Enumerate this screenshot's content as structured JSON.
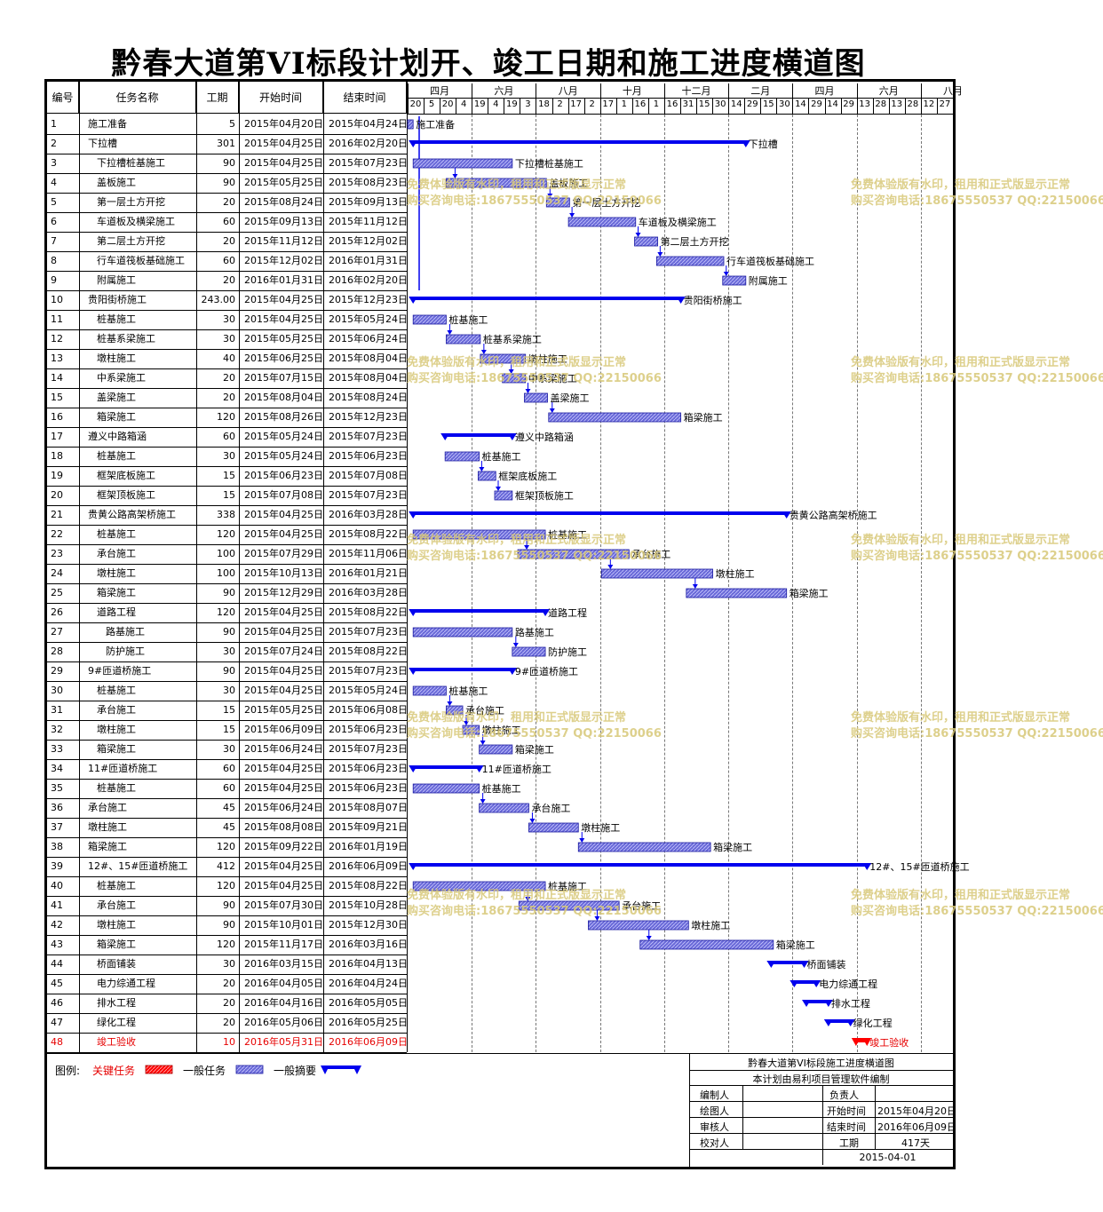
{
  "title": "黔春大道第VI标段计划开、竣工日期和施工进度横道图",
  "headers": {
    "id": "编号",
    "name": "任务名称",
    "duration": "工期",
    "start": "开始时间",
    "end": "结束时间"
  },
  "timeline": {
    "months": [
      "四月",
      "六月",
      "八月",
      "十月",
      "十二月",
      "二月",
      "四月",
      "六月",
      "八月"
    ],
    "days": [
      "20",
      "5",
      "20",
      "4",
      "19",
      "4",
      "19",
      "3",
      "18",
      "2",
      "17",
      "2",
      "17",
      "1",
      "16",
      "1",
      "16",
      "31",
      "15",
      "30",
      "14",
      "29",
      "15",
      "30",
      "14",
      "29",
      "14",
      "29",
      "13",
      "28",
      "13",
      "28",
      "12",
      "27"
    ]
  },
  "chart_data": {
    "type": "gantt",
    "title": "黔春大道第VI标段计划开、竣工日期和施工进度横道图",
    "axis_start": "2015-04-20",
    "axis_end": "2016-08-27",
    "tasks": [
      {
        "id": "1",
        "name": "施工准备",
        "dur": "5",
        "start": "2015年04月20日",
        "end": "2015年04月24日",
        "s": "2015-04-20",
        "e": "2015-04-24",
        "kind": "task",
        "indent": 0,
        "label": "施工准备"
      },
      {
        "id": "2",
        "name": "下拉槽",
        "dur": "301",
        "start": "2015年04月25日",
        "end": "2016年02月20日",
        "s": "2015-04-25",
        "e": "2016-02-20",
        "kind": "summary",
        "indent": 0,
        "label": "下拉槽"
      },
      {
        "id": "3",
        "name": "下拉槽桩基施工",
        "dur": "90",
        "start": "2015年04月25日",
        "end": "2015年07月23日",
        "s": "2015-04-25",
        "e": "2015-07-23",
        "kind": "task",
        "indent": 1,
        "label": "下拉槽桩基施工"
      },
      {
        "id": "4",
        "name": "盖板施工",
        "dur": "90",
        "start": "2015年05月25日",
        "end": "2015年08月23日",
        "s": "2015-05-25",
        "e": "2015-08-23",
        "kind": "task",
        "indent": 1,
        "label": "盖板施工"
      },
      {
        "id": "5",
        "name": "第一层土方开挖",
        "dur": "20",
        "start": "2015年08月24日",
        "end": "2015年09月13日",
        "s": "2015-08-24",
        "e": "2015-09-13",
        "kind": "task",
        "indent": 1,
        "label": "第一层土方开挖"
      },
      {
        "id": "6",
        "name": "车道板及横梁施工",
        "dur": "60",
        "start": "2015年09月13日",
        "end": "2015年11月12日",
        "s": "2015-09-13",
        "e": "2015-11-12",
        "kind": "task",
        "indent": 1,
        "label": "车道板及横梁施工"
      },
      {
        "id": "7",
        "name": "第二层土方开挖",
        "dur": "20",
        "start": "2015年11月12日",
        "end": "2015年12月02日",
        "s": "2015-11-12",
        "e": "2015-12-02",
        "kind": "task",
        "indent": 1,
        "label": "第二层土方开挖"
      },
      {
        "id": "8",
        "name": "行车道筏板基础施工",
        "dur": "60",
        "start": "2015年12月02日",
        "end": "2016年01月31日",
        "s": "2015-12-02",
        "e": "2016-01-31",
        "kind": "task",
        "indent": 1,
        "label": "行车道筏板基础施工"
      },
      {
        "id": "9",
        "name": "附属施工",
        "dur": "20",
        "start": "2016年01月31日",
        "end": "2016年02月20日",
        "s": "2016-01-31",
        "e": "2016-02-20",
        "kind": "task",
        "indent": 1,
        "label": "附属施工"
      },
      {
        "id": "10",
        "name": "贵阳街桥施工",
        "dur": "243.00",
        "start": "2015年04月25日",
        "end": "2015年12月23日",
        "s": "2015-04-25",
        "e": "2015-12-23",
        "kind": "summary",
        "indent": 0,
        "label": "贵阳街桥施工"
      },
      {
        "id": "11",
        "name": "桩基施工",
        "dur": "30",
        "start": "2015年04月25日",
        "end": "2015年05月24日",
        "s": "2015-04-25",
        "e": "2015-05-24",
        "kind": "task",
        "indent": 1,
        "label": "桩基施工"
      },
      {
        "id": "12",
        "name": "桩基系梁施工",
        "dur": "30",
        "start": "2015年05月25日",
        "end": "2015年06月24日",
        "s": "2015-05-25",
        "e": "2015-06-24",
        "kind": "task",
        "indent": 1,
        "label": "桩基系梁施工"
      },
      {
        "id": "13",
        "name": "墩柱施工",
        "dur": "40",
        "start": "2015年06月25日",
        "end": "2015年08月04日",
        "s": "2015-06-25",
        "e": "2015-08-04",
        "kind": "task",
        "indent": 1,
        "label": "墩柱施工"
      },
      {
        "id": "14",
        "name": "中系梁施工",
        "dur": "20",
        "start": "2015年07月15日",
        "end": "2015年08月04日",
        "s": "2015-07-15",
        "e": "2015-08-04",
        "kind": "task",
        "indent": 1,
        "label": "中系梁施工"
      },
      {
        "id": "15",
        "name": "盖梁施工",
        "dur": "20",
        "start": "2015年08月04日",
        "end": "2015年08月24日",
        "s": "2015-08-04",
        "e": "2015-08-24",
        "kind": "task",
        "indent": 1,
        "label": "盖梁施工"
      },
      {
        "id": "16",
        "name": "箱梁施工",
        "dur": "120",
        "start": "2015年08月26日",
        "end": "2015年12月23日",
        "s": "2015-08-26",
        "e": "2015-12-23",
        "kind": "task",
        "indent": 1,
        "label": "箱梁施工"
      },
      {
        "id": "17",
        "name": "遵义中路箱涵",
        "dur": "60",
        "start": "2015年05月24日",
        "end": "2015年07月23日",
        "s": "2015-05-24",
        "e": "2015-07-23",
        "kind": "summary",
        "indent": 0,
        "label": "遵义中路箱涵"
      },
      {
        "id": "18",
        "name": "桩基施工",
        "dur": "30",
        "start": "2015年05月24日",
        "end": "2015年06月23日",
        "s": "2015-05-24",
        "e": "2015-06-23",
        "kind": "task",
        "indent": 1,
        "label": "桩基施工"
      },
      {
        "id": "19",
        "name": "框架底板施工",
        "dur": "15",
        "start": "2015年06月23日",
        "end": "2015年07月08日",
        "s": "2015-06-23",
        "e": "2015-07-08",
        "kind": "task",
        "indent": 1,
        "label": "框架底板施工"
      },
      {
        "id": "20",
        "name": "框架顶板施工",
        "dur": "15",
        "start": "2015年07月08日",
        "end": "2015年07月23日",
        "s": "2015-07-08",
        "e": "2015-07-23",
        "kind": "task",
        "indent": 1,
        "label": "框架顶板施工"
      },
      {
        "id": "21",
        "name": "贵黄公路高架桥施工",
        "dur": "338",
        "start": "2015年04月25日",
        "end": "2016年03月28日",
        "s": "2015-04-25",
        "e": "2016-03-28",
        "kind": "summary",
        "indent": 0,
        "label": "贵黄公路高架桥施工"
      },
      {
        "id": "22",
        "name": "桩基施工",
        "dur": "120",
        "start": "2015年04月25日",
        "end": "2015年08月22日",
        "s": "2015-04-25",
        "e": "2015-08-22",
        "kind": "task",
        "indent": 1,
        "label": "桩基施工"
      },
      {
        "id": "23",
        "name": "承台施工",
        "dur": "100",
        "start": "2015年07月29日",
        "end": "2015年11月06日",
        "s": "2015-07-29",
        "e": "2015-11-06",
        "kind": "task",
        "indent": 1,
        "label": "承台施工"
      },
      {
        "id": "24",
        "name": "墩柱施工",
        "dur": "100",
        "start": "2015年10月13日",
        "end": "2016年01月21日",
        "s": "2015-10-13",
        "e": "2016-01-21",
        "kind": "task",
        "indent": 1,
        "label": "墩柱施工"
      },
      {
        "id": "25",
        "name": "箱梁施工",
        "dur": "90",
        "start": "2015年12月29日",
        "end": "2016年03月28日",
        "s": "2015-12-29",
        "e": "2016-03-28",
        "kind": "task",
        "indent": 1,
        "label": "箱梁施工"
      },
      {
        "id": "26",
        "name": "道路工程",
        "dur": "120",
        "start": "2015年04月25日",
        "end": "2015年08月22日",
        "s": "2015-04-25",
        "e": "2015-08-22",
        "kind": "summary",
        "indent": 1,
        "label": "道路工程"
      },
      {
        "id": "27",
        "name": "路基施工",
        "dur": "90",
        "start": "2015年04月25日",
        "end": "2015年07月23日",
        "s": "2015-04-25",
        "e": "2015-07-23",
        "kind": "task",
        "indent": 2,
        "label": "路基施工"
      },
      {
        "id": "28",
        "name": "防护施工",
        "dur": "30",
        "start": "2015年07月24日",
        "end": "2015年08月22日",
        "s": "2015-07-24",
        "e": "2015-08-22",
        "kind": "task",
        "indent": 2,
        "label": "防护施工"
      },
      {
        "id": "29",
        "name": "9#匝道桥施工",
        "dur": "90",
        "start": "2015年04月25日",
        "end": "2015年07月23日",
        "s": "2015-04-25",
        "e": "2015-07-23",
        "kind": "summary",
        "indent": 0,
        "label": "9#匝道桥施工"
      },
      {
        "id": "30",
        "name": "桩基施工",
        "dur": "30",
        "start": "2015年04月25日",
        "end": "2015年05月24日",
        "s": "2015-04-25",
        "e": "2015-05-24",
        "kind": "task",
        "indent": 1,
        "label": "桩基施工"
      },
      {
        "id": "31",
        "name": "承台施工",
        "dur": "15",
        "start": "2015年05月25日",
        "end": "2015年06月08日",
        "s": "2015-05-25",
        "e": "2015-06-08",
        "kind": "task",
        "indent": 1,
        "label": "承台施工"
      },
      {
        "id": "32",
        "name": "墩柱施工",
        "dur": "15",
        "start": "2015年06月09日",
        "end": "2015年06月23日",
        "s": "2015-06-09",
        "e": "2015-06-23",
        "kind": "task",
        "indent": 1,
        "label": "墩柱施工"
      },
      {
        "id": "33",
        "name": "箱梁施工",
        "dur": "30",
        "start": "2015年06月24日",
        "end": "2015年07月23日",
        "s": "2015-06-24",
        "e": "2015-07-23",
        "kind": "task",
        "indent": 1,
        "label": "箱梁施工"
      },
      {
        "id": "34",
        "name": "11#匝道桥施工",
        "dur": "60",
        "start": "2015年04月25日",
        "end": "2015年06月23日",
        "s": "2015-04-25",
        "e": "2015-06-23",
        "kind": "summary",
        "indent": 0,
        "label": "11#匝道桥施工"
      },
      {
        "id": "35",
        "name": "桩基施工",
        "dur": "60",
        "start": "2015年04月25日",
        "end": "2015年06月23日",
        "s": "2015-04-25",
        "e": "2015-06-23",
        "kind": "task",
        "indent": 1,
        "label": "桩基施工"
      },
      {
        "id": "36",
        "name": "承台施工",
        "dur": "45",
        "start": "2015年06月24日",
        "end": "2015年08月07日",
        "s": "2015-06-24",
        "e": "2015-08-07",
        "kind": "task",
        "indent": 0,
        "label": "承台施工"
      },
      {
        "id": "37",
        "name": "墩柱施工",
        "dur": "45",
        "start": "2015年08月08日",
        "end": "2015年09月21日",
        "s": "2015-08-08",
        "e": "2015-09-21",
        "kind": "task",
        "indent": 0,
        "label": "墩柱施工"
      },
      {
        "id": "38",
        "name": "箱梁施工",
        "dur": "120",
        "start": "2015年09月22日",
        "end": "2016年01月19日",
        "s": "2015-09-22",
        "e": "2016-01-19",
        "kind": "task",
        "indent": 0,
        "label": "箱梁施工"
      },
      {
        "id": "39",
        "name": "12#、15#匝道桥施工",
        "dur": "412",
        "start": "2015年04月25日",
        "end": "2016年06月09日",
        "s": "2015-04-25",
        "e": "2016-06-09",
        "kind": "summary",
        "indent": 0,
        "label": "12#、15#匝道桥施工"
      },
      {
        "id": "40",
        "name": "桩基施工",
        "dur": "120",
        "start": "2015年04月25日",
        "end": "2015年08月22日",
        "s": "2015-04-25",
        "e": "2015-08-22",
        "kind": "task",
        "indent": 1,
        "label": "桩基施工"
      },
      {
        "id": "41",
        "name": "承台施工",
        "dur": "90",
        "start": "2015年07月30日",
        "end": "2015年10月28日",
        "s": "2015-07-30",
        "e": "2015-10-28",
        "kind": "task",
        "indent": 1,
        "label": "承台施工"
      },
      {
        "id": "42",
        "name": "墩柱施工",
        "dur": "90",
        "start": "2015年10月01日",
        "end": "2015年12月30日",
        "s": "2015-10-01",
        "e": "2015-12-30",
        "kind": "task",
        "indent": 1,
        "label": "墩柱施工"
      },
      {
        "id": "43",
        "name": "箱梁施工",
        "dur": "120",
        "start": "2015年11月17日",
        "end": "2016年03月16日",
        "s": "2015-11-17",
        "e": "2016-03-16",
        "kind": "task",
        "indent": 1,
        "label": "箱梁施工"
      },
      {
        "id": "44",
        "name": "桥面铺装",
        "dur": "30",
        "start": "2016年03月15日",
        "end": "2016年04月13日",
        "s": "2016-03-15",
        "e": "2016-04-13",
        "kind": "summary",
        "indent": 1,
        "label": "桥面铺装"
      },
      {
        "id": "45",
        "name": "电力综通工程",
        "dur": "20",
        "start": "2016年04月05日",
        "end": "2016年04月24日",
        "s": "2016-04-05",
        "e": "2016-04-24",
        "kind": "summary",
        "indent": 1,
        "label": "电力综通工程"
      },
      {
        "id": "46",
        "name": "排水工程",
        "dur": "20",
        "start": "2016年04月16日",
        "end": "2016年05月05日",
        "s": "2016-04-16",
        "e": "2016-05-05",
        "kind": "summary",
        "indent": 1,
        "label": "排水工程"
      },
      {
        "id": "47",
        "name": "绿化工程",
        "dur": "20",
        "start": "2016年05月06日",
        "end": "2016年05月25日",
        "s": "2016-05-06",
        "e": "2016-05-25",
        "kind": "summary",
        "indent": 1,
        "label": "绿化工程"
      },
      {
        "id": "48",
        "name": "竣工验收",
        "dur": "10",
        "start": "2016年05月31日",
        "end": "2016年06月09日",
        "s": "2016-05-31",
        "e": "2016-06-09",
        "kind": "critical",
        "indent": 1,
        "label": "竣工验收"
      }
    ]
  },
  "legend": {
    "label": "图例:",
    "critical": "关键任务",
    "normal": "一般任务",
    "summary": "一般摘要"
  },
  "watermark": {
    "line1": "免费体验版有水印，租用和正式版显示正常",
    "line2": "购买咨询电话:18675550537 QQ:22150066"
  },
  "footer": {
    "title": "黔春大道第VI标段施工进度横道图",
    "subtitle": "本计划由易利项目管理软件编制",
    "editor": "编制人",
    "owner": "负责人",
    "drawer": "绘图人",
    "start_label": "开始时间",
    "start_value": "2015年04月20日",
    "reviewer": "审核人",
    "end_label": "结束时间",
    "end_value": "2016年06月09日",
    "checker": "校对人",
    "dur_label": "工期",
    "dur_value": "417天",
    "date": "2015-04-01"
  },
  "colors": {
    "bar": "#6a6ad8",
    "bar_border": "#1a1aa0",
    "summary": "#0000ee",
    "critical": "#ff0000",
    "critical_text": "#e60000"
  }
}
